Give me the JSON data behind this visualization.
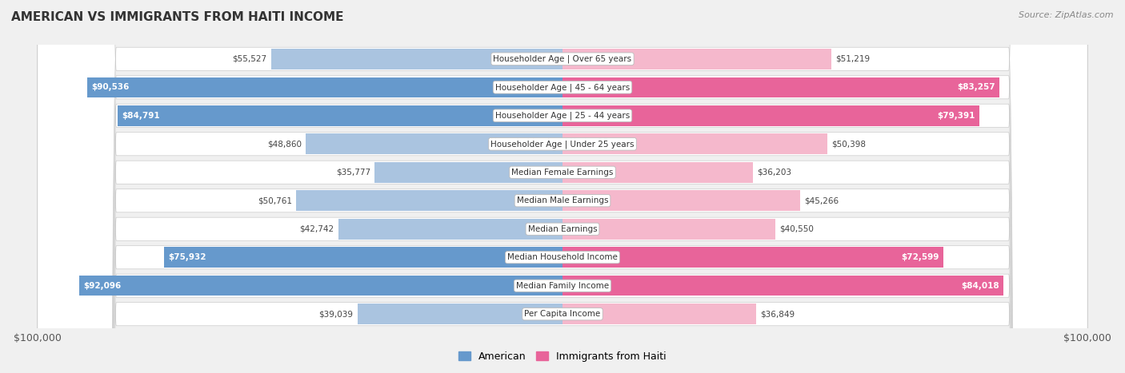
{
  "title": "AMERICAN VS IMMIGRANTS FROM HAITI INCOME",
  "source": "Source: ZipAtlas.com",
  "categories": [
    "Per Capita Income",
    "Median Family Income",
    "Median Household Income",
    "Median Earnings",
    "Median Male Earnings",
    "Median Female Earnings",
    "Householder Age | Under 25 years",
    "Householder Age | 25 - 44 years",
    "Householder Age | 45 - 64 years",
    "Householder Age | Over 65 years"
  ],
  "american_values": [
    39039,
    92096,
    75932,
    42742,
    50761,
    35777,
    48860,
    84791,
    90536,
    55527
  ],
  "haiti_values": [
    36849,
    84018,
    72599,
    40550,
    45266,
    36203,
    50398,
    79391,
    83257,
    51219
  ],
  "american_labels": [
    "$39,039",
    "$92,096",
    "$75,932",
    "$42,742",
    "$50,761",
    "$35,777",
    "$48,860",
    "$84,791",
    "$90,536",
    "$55,527"
  ],
  "haiti_labels": [
    "$36,849",
    "$84,018",
    "$72,599",
    "$40,550",
    "$45,266",
    "$36,203",
    "$50,398",
    "$79,391",
    "$83,257",
    "$51,219"
  ],
  "american_color_light": "#aac4e0",
  "american_color_dark": "#6699cc",
  "haiti_color_light": "#f5b8cc",
  "haiti_color_dark": "#e8649a",
  "background_color": "#f0f0f0",
  "row_bg": "#e8e8e8",
  "max_value": 100000,
  "threshold": 70000,
  "legend_american": "American",
  "legend_haiti": "Immigrants from Haiti",
  "xlabel_left": "$100,000",
  "xlabel_right": "$100,000"
}
